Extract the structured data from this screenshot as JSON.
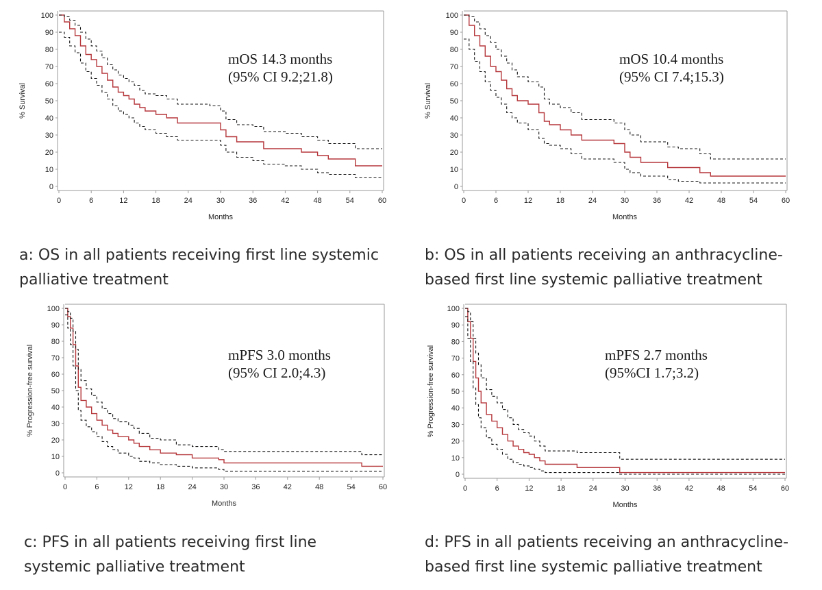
{
  "colors": {
    "estimate": "#b5373b",
    "ci": "#111111",
    "axis": "#9a9a9a",
    "text": "#222222"
  },
  "captions": {
    "a": [
      "a: OS in all patients receiving first line systemic",
      "palliative treatment"
    ],
    "b": [
      "b: OS in all patients receiving an anthracycline-",
      "based first line systemic palliative treatment"
    ],
    "c": [
      "c: PFS in all patients receiving first line",
      "systemic palliative treatment"
    ],
    "d": [
      "d: PFS in all patients receiving an anthracycline-",
      "based first line systemic palliative treatment"
    ]
  },
  "chart_data": [
    {
      "type": "line",
      "step": true,
      "xlabel": "Months",
      "ylabel": "% Survival",
      "xlim": [
        0,
        60
      ],
      "ylim": [
        0,
        100
      ],
      "xticks": [
        0,
        6,
        12,
        18,
        24,
        30,
        36,
        42,
        48,
        54,
        60
      ],
      "yticks": [
        0,
        10,
        20,
        30,
        40,
        50,
        60,
        70,
        80,
        90,
        100
      ],
      "annotation": [
        "mOS 14.3 months",
        "(95% CI 9.2;21.8)"
      ],
      "series": [
        {
          "role": "estimate",
          "x": [
            0,
            1,
            2,
            3,
            4,
            5,
            6,
            7,
            8,
            9,
            10,
            11,
            12,
            13,
            14,
            15,
            16,
            18,
            20,
            22,
            24,
            28,
            30,
            31,
            33,
            36,
            38,
            42,
            45,
            48,
            50,
            55,
            60
          ],
          "y": [
            100,
            96,
            92,
            88,
            82,
            77,
            74,
            70,
            66,
            62,
            58,
            55,
            53,
            51,
            48,
            46,
            44,
            42,
            40,
            37,
            37,
            37,
            33,
            29,
            26,
            26,
            22,
            22,
            20,
            18,
            16,
            12,
            12
          ]
        },
        {
          "role": "ci-upper",
          "x": [
            0,
            1,
            2,
            3,
            4,
            5,
            6,
            7,
            8,
            9,
            10,
            11,
            12,
            13,
            14,
            15,
            16,
            18,
            20,
            22,
            24,
            28,
            30,
            31,
            33,
            36,
            38,
            42,
            45,
            48,
            50,
            55,
            60
          ],
          "y": [
            100,
            99,
            97,
            94,
            90,
            86,
            82,
            79,
            75,
            71,
            68,
            65,
            63,
            61,
            59,
            56,
            54,
            53,
            51,
            48,
            48,
            47,
            44,
            39,
            36,
            35,
            32,
            31,
            29,
            27,
            25,
            22,
            22
          ]
        },
        {
          "role": "ci-lower",
          "x": [
            0,
            1,
            2,
            3,
            4,
            5,
            6,
            7,
            8,
            9,
            10,
            11,
            12,
            13,
            14,
            15,
            16,
            18,
            20,
            22,
            24,
            28,
            30,
            31,
            33,
            36,
            38,
            42,
            45,
            48,
            50,
            55,
            60
          ],
          "y": [
            90,
            87,
            82,
            78,
            72,
            67,
            63,
            59,
            55,
            51,
            47,
            44,
            42,
            40,
            37,
            35,
            33,
            31,
            29,
            27,
            27,
            27,
            24,
            20,
            17,
            15,
            13,
            12,
            10,
            8,
            7,
            5,
            5
          ]
        }
      ]
    },
    {
      "type": "line",
      "step": true,
      "xlabel": "Months",
      "ylabel": "% Survival",
      "xlim": [
        0,
        60
      ],
      "ylim": [
        0,
        100
      ],
      "xticks": [
        0,
        6,
        12,
        18,
        24,
        30,
        36,
        42,
        48,
        54,
        60
      ],
      "yticks": [
        0,
        10,
        20,
        30,
        40,
        50,
        60,
        70,
        80,
        90,
        100
      ],
      "annotation": [
        "mOS 10.4 months",
        "(95% CI 7.4;15.3)"
      ],
      "series": [
        {
          "role": "estimate",
          "x": [
            0,
            1,
            2,
            3,
            4,
            5,
            6,
            7,
            8,
            9,
            10,
            12,
            14,
            15,
            16,
            18,
            20,
            22,
            24,
            28,
            30,
            31,
            33,
            36,
            38,
            40,
            44,
            46,
            60
          ],
          "y": [
            100,
            94,
            88,
            82,
            76,
            70,
            67,
            62,
            57,
            53,
            50,
            48,
            43,
            38,
            36,
            33,
            30,
            27,
            27,
            25,
            20,
            17,
            14,
            14,
            11,
            11,
            8,
            6,
            6
          ]
        },
        {
          "role": "ci-upper",
          "x": [
            0,
            1,
            2,
            3,
            4,
            5,
            6,
            7,
            8,
            9,
            10,
            12,
            14,
            15,
            16,
            18,
            20,
            22,
            24,
            28,
            30,
            31,
            33,
            36,
            38,
            40,
            44,
            46,
            60
          ],
          "y": [
            100,
            99,
            96,
            92,
            88,
            84,
            80,
            76,
            72,
            68,
            64,
            61,
            58,
            51,
            48,
            46,
            43,
            39,
            39,
            37,
            33,
            30,
            26,
            26,
            23,
            22,
            19,
            16,
            16
          ]
        },
        {
          "role": "ci-lower",
          "x": [
            0,
            1,
            2,
            3,
            4,
            5,
            6,
            7,
            8,
            9,
            10,
            12,
            14,
            15,
            16,
            18,
            20,
            22,
            24,
            28,
            30,
            31,
            33,
            36,
            38,
            40,
            44,
            46,
            60
          ],
          "y": [
            86,
            80,
            73,
            67,
            61,
            56,
            52,
            48,
            43,
            40,
            37,
            33,
            28,
            25,
            24,
            22,
            19,
            16,
            16,
            14,
            10,
            8,
            6,
            6,
            4,
            3,
            2,
            2,
            2
          ]
        }
      ]
    },
    {
      "type": "line",
      "step": true,
      "xlabel": "Months",
      "ylabel": "% Progression-free survival",
      "xlim": [
        0,
        60
      ],
      "ylim": [
        0,
        100
      ],
      "xticks": [
        0,
        6,
        12,
        18,
        24,
        30,
        36,
        42,
        48,
        54,
        60
      ],
      "yticks": [
        0,
        10,
        20,
        30,
        40,
        50,
        60,
        70,
        80,
        90,
        100
      ],
      "annotation": [
        "mPFS 3.0 months",
        "(95% CI 2.0;4.3)"
      ],
      "series": [
        {
          "role": "estimate",
          "x": [
            0,
            0.5,
            1,
            1.5,
            2,
            2.5,
            3,
            4,
            5,
            6,
            7,
            8,
            9,
            10,
            12,
            13,
            14,
            16,
            18,
            21,
            24,
            29,
            30,
            40,
            50,
            56,
            60
          ],
          "y": [
            100,
            95,
            88,
            78,
            65,
            52,
            44,
            40,
            36,
            32,
            29,
            26,
            24,
            22,
            20,
            18,
            16,
            14,
            12,
            11,
            9,
            8,
            6,
            6,
            6,
            4,
            4
          ]
        },
        {
          "role": "ci-upper",
          "x": [
            0,
            0.5,
            1,
            1.5,
            2,
            2.5,
            3,
            4,
            5,
            6,
            7,
            8,
            9,
            10,
            12,
            13,
            14,
            16,
            18,
            21,
            24,
            29,
            30,
            40,
            50,
            56,
            60
          ],
          "y": [
            100,
            98,
            94,
            86,
            75,
            63,
            56,
            51,
            47,
            43,
            39,
            36,
            33,
            31,
            29,
            27,
            24,
            21,
            20,
            17,
            16,
            14,
            13,
            13,
            13,
            11,
            11
          ]
        },
        {
          "role": "ci-lower",
          "x": [
            0,
            0.5,
            1,
            1.5,
            2,
            2.5,
            3,
            4,
            5,
            6,
            7,
            8,
            9,
            10,
            12,
            13,
            14,
            16,
            18,
            21,
            24,
            29,
            30,
            40,
            50,
            56,
            60
          ],
          "y": [
            96,
            88,
            78,
            65,
            50,
            38,
            32,
            28,
            25,
            22,
            19,
            16,
            14,
            12,
            10,
            9,
            7,
            6,
            5,
            4,
            3,
            2,
            1,
            1,
            1,
            1,
            1
          ]
        }
      ]
    },
    {
      "type": "line",
      "step": true,
      "xlabel": "Months",
      "ylabel": "% Progression-free survival",
      "xlim": [
        0,
        60
      ],
      "ylim": [
        0,
        100
      ],
      "xticks": [
        0,
        6,
        12,
        18,
        24,
        30,
        36,
        42,
        48,
        54,
        60
      ],
      "yticks": [
        0,
        10,
        20,
        30,
        40,
        50,
        60,
        70,
        80,
        90,
        100
      ],
      "annotation": [
        "mPFS 2.7 months",
        "(95%CI 1.7;3.2)"
      ],
      "series": [
        {
          "role": "estimate",
          "x": [
            0,
            0.5,
            1,
            1.5,
            2,
            2.5,
            3,
            4,
            5,
            6,
            7,
            8,
            9,
            10,
            11,
            12,
            13,
            14,
            15,
            21,
            29,
            60
          ],
          "y": [
            100,
            92,
            82,
            68,
            58,
            50,
            43,
            36,
            32,
            28,
            24,
            20,
            17,
            15,
            13,
            12,
            10,
            8,
            6,
            4,
            1,
            1
          ]
        },
        {
          "role": "ci-upper",
          "x": [
            0,
            0.5,
            1,
            1.5,
            2,
            2.5,
            3,
            4,
            5,
            6,
            7,
            8,
            9,
            10,
            11,
            12,
            13,
            14,
            15,
            21,
            29,
            60
          ],
          "y": [
            100,
            98,
            92,
            82,
            73,
            66,
            58,
            51,
            47,
            43,
            39,
            34,
            30,
            27,
            25,
            23,
            20,
            17,
            14,
            13,
            9,
            9
          ]
        },
        {
          "role": "ci-lower",
          "x": [
            0,
            0.5,
            1,
            1.5,
            2,
            2.5,
            3,
            4,
            5,
            6,
            7,
            8,
            9,
            10,
            11,
            12,
            13,
            14,
            15,
            21,
            29,
            60
          ],
          "y": [
            95,
            82,
            68,
            52,
            42,
            34,
            28,
            22,
            18,
            15,
            12,
            9,
            7,
            6,
            5,
            4,
            3,
            2,
            1,
            1,
            0,
            0
          ]
        }
      ]
    }
  ]
}
